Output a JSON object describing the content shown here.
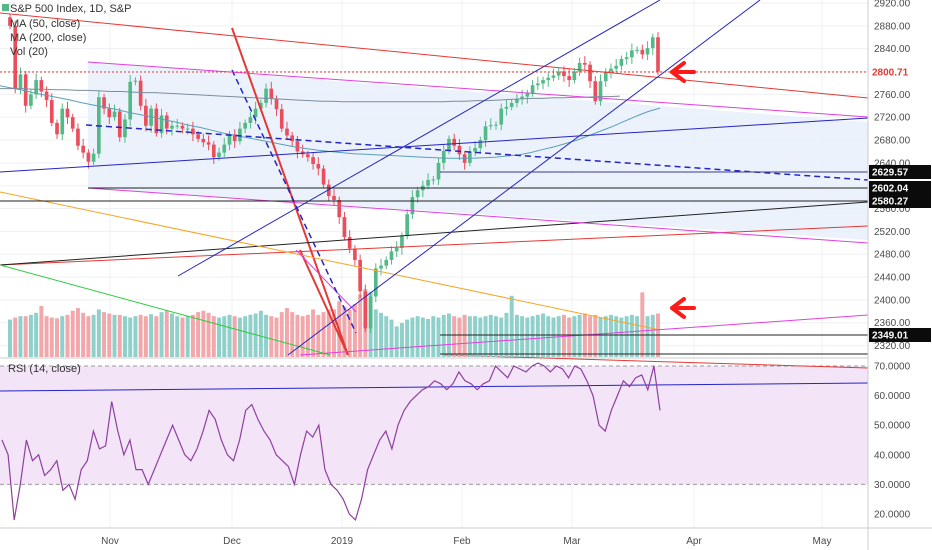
{
  "header": {
    "symbol_line": "S&P 500 Index, 1D, S&P",
    "indicators": [
      "MA (50, close)",
      "MA (200, close)",
      "Vol (20)"
    ]
  },
  "rsi": {
    "label": "RSI (14, close)",
    "ticks": [
      "70.0000",
      "60.0000",
      "50.0000",
      "40.0000",
      "30.0000",
      "20.0000"
    ]
  },
  "colors": {
    "up": "#53b987",
    "down": "#eb4d5c",
    "ma50": "#5a9fb8",
    "ma200": "#7a8ea0",
    "rsi_line": "#8e3fa0",
    "rsi_band": "#f3e5f7",
    "channel_fill": "#e7f0fb",
    "red_trend": "#e53935",
    "blue_trend": "#2525c4",
    "magenta_trend": "#e040e0",
    "arrow": "#ff1a1a"
  },
  "chart_data": {
    "type": "candlestick",
    "title": "S&P 500 Index, 1D, S&P",
    "ylim": [
      2310,
      2930
    ],
    "y_ticks": [
      2920,
      2880,
      2840,
      2800,
      2760,
      2720,
      2680,
      2640,
      2600,
      2560,
      2520,
      2480,
      2440,
      2400,
      2360,
      2320
    ],
    "x_ticks": [
      "Nov",
      "Dec",
      "2019",
      "Feb",
      "Mar",
      "Apr",
      "May"
    ],
    "price_labels": [
      {
        "value": "2800.71",
        "style": "red"
      },
      {
        "value": "2629.57",
        "style": "dark"
      },
      {
        "value": "2602.04",
        "style": "dark"
      },
      {
        "value": "2580.27",
        "style": "dark"
      },
      {
        "value": "2349.01",
        "style": "dark"
      }
    ],
    "closes": [
      2880,
      2770,
      2795,
      2740,
      2760,
      2785,
      2765,
      2750,
      2710,
      2690,
      2735,
      2720,
      2700,
      2670,
      2658,
      2642,
      2656,
      2755,
      2735,
      2720,
      2730,
      2685,
      2716,
      2782,
      2784,
      2740,
      2705,
      2735,
      2692,
      2723,
      2700,
      2705,
      2705,
      2700,
      2700,
      2690,
      2682,
      2676,
      2672,
      2650,
      2658,
      2672,
      2690,
      2678,
      2700,
      2710,
      2720,
      2735,
      2745,
      2770,
      2752,
      2734,
      2700,
      2688,
      2678,
      2660,
      2655,
      2650,
      2638,
      2630,
      2602,
      2582,
      2575,
      2545,
      2510,
      2490,
      2470,
      2415,
      2350,
      2406,
      2455,
      2460,
      2470,
      2485,
      2491,
      2512,
      2550,
      2580,
      2592,
      2600,
      2610,
      2611,
      2640,
      2661,
      2682,
      2670,
      2655,
      2640,
      2660,
      2666,
      2680,
      2704,
      2706,
      2707,
      2735,
      2738,
      2745,
      2752,
      2756,
      2762,
      2776,
      2779,
      2785,
      2789,
      2793,
      2800,
      2792,
      2785,
      2800,
      2815,
      2812,
      2783,
      2748,
      2783,
      2800,
      2805,
      2810,
      2822,
      2825,
      2837,
      2838,
      2830,
      2841,
      2860,
      2800
    ],
    "volume_unit": "relative (0-1)",
    "volumes": [
      0.55,
      0.58,
      0.6,
      0.6,
      0.62,
      0.65,
      0.75,
      0.6,
      0.58,
      0.57,
      0.6,
      0.62,
      0.68,
      0.72,
      0.65,
      0.6,
      0.62,
      0.7,
      0.66,
      0.64,
      0.62,
      0.62,
      0.6,
      0.58,
      0.6,
      0.62,
      0.6,
      0.63,
      0.6,
      0.66,
      0.68,
      0.64,
      0.6,
      0.58,
      0.6,
      0.62,
      0.66,
      0.68,
      0.65,
      0.6,
      0.58,
      0.6,
      0.62,
      0.6,
      0.58,
      0.6,
      0.62,
      0.64,
      0.68,
      0.62,
      0.6,
      0.58,
      0.66,
      0.72,
      0.66,
      0.62,
      0.6,
      0.62,
      0.7,
      0.62,
      0.66,
      0.7,
      0.7,
      0.82,
      0.74,
      0.7,
      0.78,
      0.92,
      1.0,
      0.96,
      0.7,
      0.65,
      0.6,
      0.55,
      0.45,
      0.5,
      0.55,
      0.58,
      0.6,
      0.58,
      0.56,
      0.6,
      0.58,
      0.62,
      0.64,
      0.6,
      0.58,
      0.62,
      0.6,
      0.6,
      0.58,
      0.6,
      0.62,
      0.6,
      0.58,
      0.65,
      0.9,
      0.62,
      0.6,
      0.58,
      0.6,
      0.62,
      0.64,
      0.6,
      0.58,
      0.6,
      0.62,
      0.58,
      0.6,
      0.62,
      0.64,
      0.6,
      0.62,
      0.58,
      0.6,
      0.62,
      0.6,
      0.58,
      0.6,
      0.62,
      0.6,
      0.95,
      0.6,
      0.62,
      0.64
    ],
    "ma50_y": [
      2775,
      2771,
      2767,
      2762,
      2758,
      2754,
      2750,
      2745,
      2741,
      2737,
      2733,
      2728,
      2724,
      2720,
      2715,
      2711,
      2706,
      2702,
      2697,
      2692,
      2688,
      2684,
      2680,
      2676,
      2672,
      2668,
      2665,
      2662,
      2660,
      2658,
      2656,
      2655,
      2654,
      2653,
      2652,
      2651,
      2650,
      2649,
      2648,
      2648,
      2648,
      2649,
      2650,
      2652,
      2654,
      2658,
      2663,
      2668,
      2674,
      2680,
      2688,
      2696,
      2704,
      2713,
      2722,
      2730,
      2736
    ],
    "ma200_y": [
      2770,
      2770,
      2770,
      2769,
      2769,
      2768,
      2768,
      2767,
      2767,
      2766,
      2765,
      2765,
      2764,
      2763,
      2763,
      2762,
      2761,
      2760,
      2759,
      2758,
      2757,
      2756,
      2755,
      2754,
      2753,
      2752,
      2751,
      2750,
      2749,
      2748,
      2748,
      2747,
      2747,
      2747,
      2747,
      2747,
      2747,
      2747,
      2747,
      2747,
      2747,
      2748,
      2748,
      2749,
      2749,
      2750,
      2751,
      2752,
      2753,
      2753,
      2754,
      2754,
      2755,
      2755,
      2756,
      2756,
      2757
    ],
    "rsi_unit": "RSI",
    "rsi_ylim": [
      15,
      72
    ],
    "rsi_values": [
      45,
      40,
      18,
      30,
      45,
      38,
      40,
      33,
      35,
      38,
      28,
      30,
      25,
      35,
      38,
      48,
      42,
      43,
      58,
      48,
      40,
      45,
      35,
      35,
      30,
      35,
      40,
      45,
      50,
      45,
      40,
      38,
      42,
      48,
      55,
      52,
      45,
      40,
      38,
      45,
      55,
      57,
      52,
      48,
      45,
      40,
      38,
      36,
      30,
      40,
      48,
      46,
      50,
      35,
      30,
      28,
      25,
      20,
      18,
      25,
      35,
      40,
      45,
      48,
      42,
      50,
      55,
      58,
      60,
      62,
      63,
      65,
      64,
      62,
      64,
      68,
      65,
      64,
      62,
      64,
      65,
      70,
      68,
      66,
      70,
      69,
      68,
      70,
      71,
      70,
      68,
      70,
      69,
      66,
      70,
      69,
      65,
      60,
      50,
      48,
      55,
      60,
      65,
      63,
      66,
      67,
      62,
      70,
      55
    ]
  }
}
